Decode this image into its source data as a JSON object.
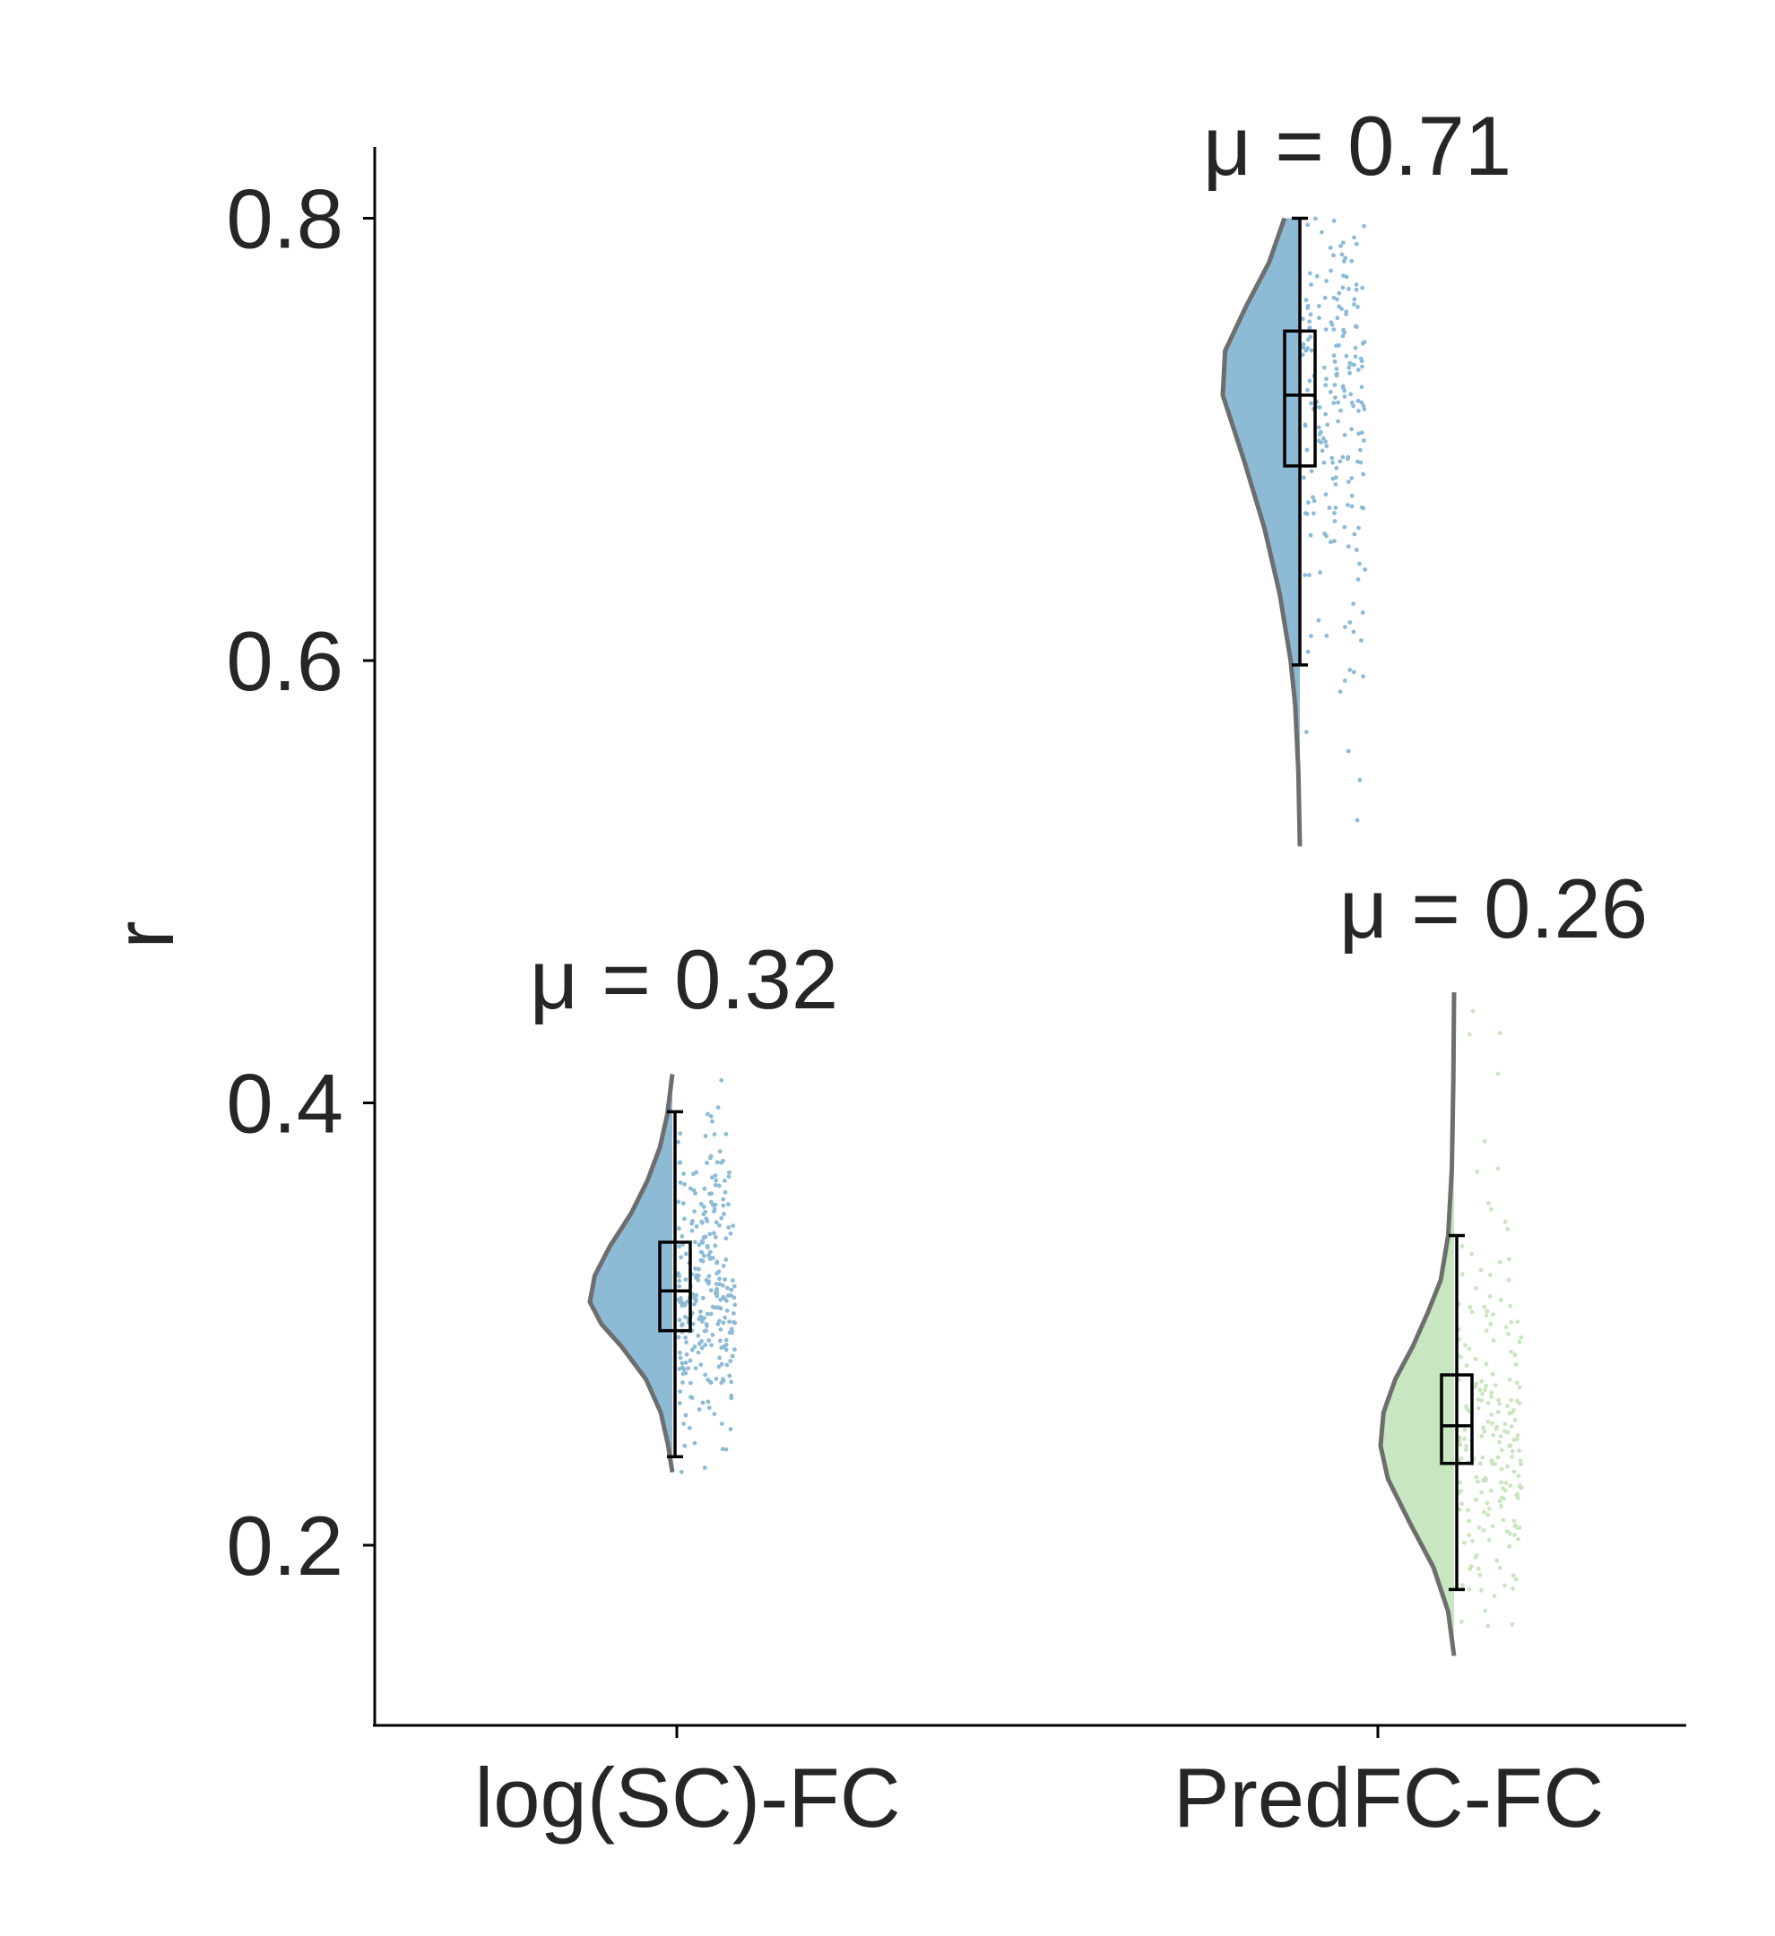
{
  "chart_data": {
    "type": "raincloud",
    "ylabel": "r",
    "xlabel": "",
    "ylim": [
      0.12,
      0.83
    ],
    "yticks": [
      "0.2",
      "0.4",
      "0.6",
      "0.8"
    ],
    "ytick_values": [
      0.2,
      0.4,
      0.6,
      0.8
    ],
    "categories": [
      "log(SC)-FC",
      "PredFC-FC"
    ],
    "grid": false,
    "legend": "none",
    "colors": {
      "logsc": "#8dbbd6",
      "predfc_upper": "#8dbbd6",
      "predfc_lower": "#c8e6bf",
      "outline": "#6e6e6e",
      "box": "#000000",
      "text": "#262626"
    },
    "series": [
      {
        "category": "log(SC)-FC",
        "color_key": "logsc",
        "annotation": "μ = 0.32",
        "mean": 0.32,
        "box": {
          "whisker_low": 0.24,
          "q1": 0.297,
          "median": 0.315,
          "q3": 0.337,
          "whisker_high": 0.396
        },
        "range": [
          0.233,
          0.413
        ],
        "density": [
          [
            0.233,
            0.0
          ],
          [
            0.245,
            0.05
          ],
          [
            0.26,
            0.14
          ],
          [
            0.275,
            0.32
          ],
          [
            0.29,
            0.62
          ],
          [
            0.3,
            0.86
          ],
          [
            0.31,
            1.0
          ],
          [
            0.322,
            0.94
          ],
          [
            0.335,
            0.76
          ],
          [
            0.35,
            0.5
          ],
          [
            0.365,
            0.3
          ],
          [
            0.38,
            0.15
          ],
          [
            0.395,
            0.06
          ],
          [
            0.413,
            0.0
          ]
        ]
      },
      {
        "category": "PredFC-FC",
        "color_key": "predfc_upper",
        "annotation": "μ = 0.71",
        "mean": 0.71,
        "box": {
          "whisker_low": 0.598,
          "q1": 0.688,
          "median": 0.72,
          "q3": 0.749,
          "whisker_high": 0.8
        },
        "range": [
          0.516,
          0.8
        ],
        "density": [
          [
            0.516,
            0.0
          ],
          [
            0.55,
            0.02
          ],
          [
            0.58,
            0.06
          ],
          [
            0.6,
            0.12
          ],
          [
            0.63,
            0.26
          ],
          [
            0.66,
            0.46
          ],
          [
            0.69,
            0.72
          ],
          [
            0.72,
            1.0
          ],
          [
            0.74,
            0.97
          ],
          [
            0.76,
            0.7
          ],
          [
            0.78,
            0.4
          ],
          [
            0.8,
            0.2
          ]
        ]
      },
      {
        "category": "PredFC-FC",
        "color_key": "predfc_lower",
        "annotation": "μ = 0.26",
        "mean": 0.26,
        "box": {
          "whisker_low": 0.18,
          "q1": 0.237,
          "median": 0.254,
          "q3": 0.277,
          "whisker_high": 0.34
        },
        "range": [
          0.15,
          0.45
        ],
        "density": [
          [
            0.15,
            0.0
          ],
          [
            0.17,
            0.08
          ],
          [
            0.19,
            0.28
          ],
          [
            0.21,
            0.6
          ],
          [
            0.23,
            0.9
          ],
          [
            0.245,
            1.0
          ],
          [
            0.26,
            0.96
          ],
          [
            0.275,
            0.8
          ],
          [
            0.29,
            0.56
          ],
          [
            0.305,
            0.36
          ],
          [
            0.32,
            0.18
          ],
          [
            0.34,
            0.08
          ],
          [
            0.37,
            0.03
          ],
          [
            0.41,
            0.01
          ],
          [
            0.45,
            0.0
          ]
        ]
      }
    ]
  }
}
